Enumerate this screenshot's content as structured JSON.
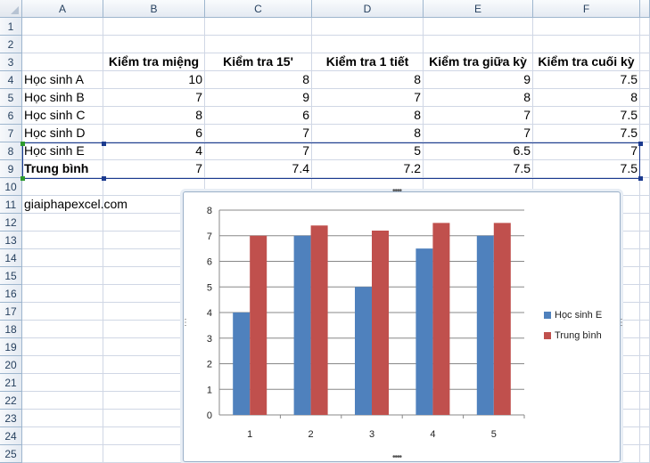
{
  "columns": [
    "A",
    "B",
    "C",
    "D",
    "E",
    "F"
  ],
  "rows": [
    "1",
    "2",
    "3",
    "4",
    "5",
    "6",
    "7",
    "8",
    "9",
    "10",
    "11",
    "12",
    "13",
    "14",
    "15",
    "16",
    "17",
    "18",
    "19",
    "20",
    "21",
    "22",
    "23",
    "24",
    "25"
  ],
  "table": {
    "headers": [
      "Kiểm tra miệng",
      "Kiểm tra 15'",
      "Kiểm tra 1 tiết",
      "Kiểm tra giữa kỳ",
      "Kiểm tra cuối kỳ"
    ],
    "rows": [
      {
        "label": "Học sinh A",
        "values": [
          "10",
          "8",
          "8",
          "9",
          "7.5"
        ]
      },
      {
        "label": "Học sinh B",
        "values": [
          "7",
          "9",
          "7",
          "8",
          "8"
        ]
      },
      {
        "label": "Học sinh C",
        "values": [
          "8",
          "6",
          "8",
          "7",
          "7.5"
        ]
      },
      {
        "label": "Học sinh D",
        "values": [
          "6",
          "7",
          "8",
          "7",
          "7.5"
        ]
      },
      {
        "label": "Học sinh E",
        "values": [
          "4",
          "7",
          "5",
          "6.5",
          "7"
        ]
      },
      {
        "label": "Trung bình",
        "values": [
          "7",
          "7.4",
          "7.2",
          "7.5",
          "7.5"
        ]
      }
    ]
  },
  "note": "giaiphapexcel.com",
  "chart_data": {
    "type": "bar",
    "categories": [
      "1",
      "2",
      "3",
      "4",
      "5"
    ],
    "series": [
      {
        "name": "Học sinh E",
        "values": [
          4,
          7,
          5,
          6.5,
          7
        ],
        "color": "#4f81bd"
      },
      {
        "name": "Trung bình",
        "values": [
          7,
          7.4,
          7.2,
          7.5,
          7.5
        ],
        "color": "#c0504d"
      }
    ],
    "ylim": [
      0,
      8
    ],
    "yticks": [
      "0",
      "1",
      "2",
      "3",
      "4",
      "5",
      "6",
      "7",
      "8"
    ],
    "grid": true,
    "legend": "right"
  }
}
